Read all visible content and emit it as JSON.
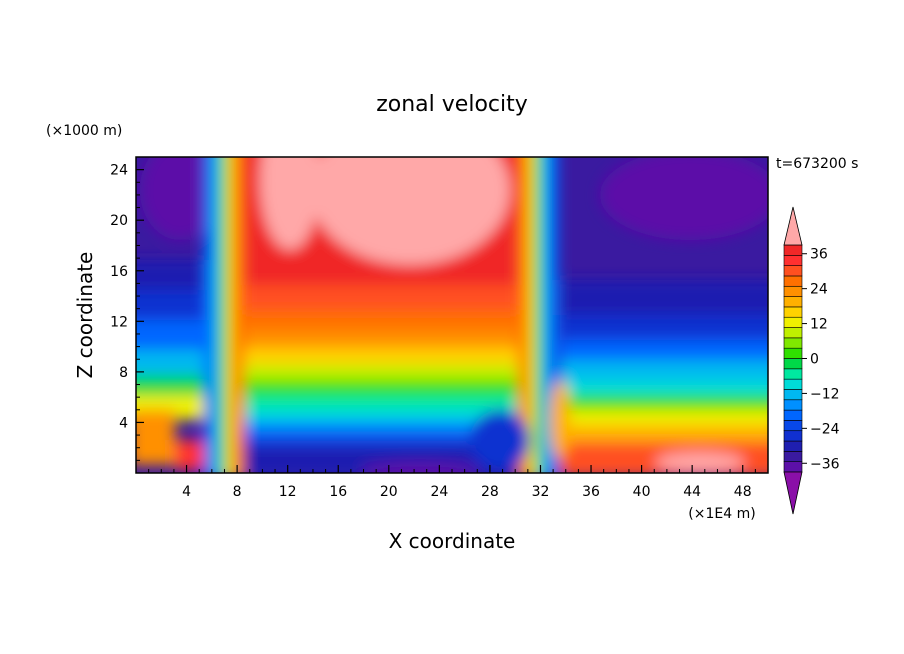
{
  "chart_data": {
    "type": "heatmap",
    "title": "zonal velocity",
    "xlabel": "X coordinate",
    "ylabel": "Z coordinate",
    "x_unit": "(×1E4 m)",
    "y_unit": "(×1000 m)",
    "time_label": "t=673200 s",
    "xlim": [
      0,
      50
    ],
    "ylim": [
      0,
      25
    ],
    "xticks": [
      4,
      8,
      12,
      16,
      20,
      24,
      28,
      32,
      36,
      40,
      44,
      48
    ],
    "yticks": [
      4,
      8,
      12,
      16,
      20,
      24
    ],
    "colorbar": {
      "ticks": [
        36,
        24,
        12,
        0,
        -12,
        -24,
        -36
      ],
      "levels": [
        -42,
        -39,
        -36,
        -33,
        -30,
        -27,
        -24,
        -21,
        -18,
        -15,
        -12,
        -9,
        -6,
        -3,
        0,
        3,
        6,
        9,
        12,
        15,
        18,
        21,
        24,
        27,
        30,
        33,
        36,
        39,
        42
      ],
      "colors": [
        "#8a0fa8",
        "#5c10a8",
        "#3a1aa0",
        "#1f1fb0",
        "#1030d0",
        "#0848e8",
        "#0066ff",
        "#0090ff",
        "#00b8f0",
        "#00dcd8",
        "#00e8a0",
        "#00d848",
        "#30e000",
        "#80e800",
        "#c0f000",
        "#f0f000",
        "#ffd200",
        "#ffb000",
        "#ff9000",
        "#ff7000",
        "#ff5020",
        "#ff3030",
        "#f02828",
        "#ffa8a8"
      ]
    },
    "grid": "off"
  }
}
